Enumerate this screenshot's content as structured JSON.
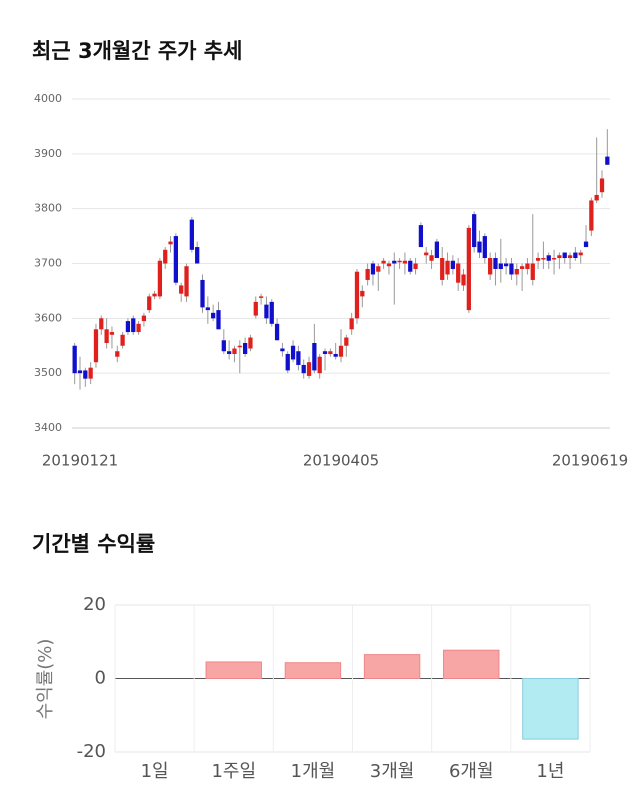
{
  "chart_data": [
    {
      "type": "candlestick",
      "title": "최근 3개월간 주가 추세",
      "categories": [
        "20190121",
        null,
        null,
        null,
        null,
        null,
        null,
        null,
        null,
        null,
        null,
        null,
        null,
        null,
        null,
        null,
        null,
        null,
        null,
        null,
        null,
        null,
        null,
        null,
        null,
        null,
        null,
        null,
        null,
        null,
        null,
        null,
        null,
        null,
        null,
        null,
        null,
        null,
        null,
        null,
        null,
        null,
        null,
        null,
        null,
        null,
        null,
        null,
        null,
        null,
        "20190405",
        null,
        null,
        null,
        null,
        null,
        null,
        null,
        null,
        null,
        null,
        null,
        null,
        null,
        null,
        null,
        null,
        null,
        null,
        null,
        null,
        null,
        null,
        null,
        null,
        null,
        null,
        null,
        null,
        null,
        null,
        null,
        null,
        null,
        null,
        null,
        null,
        null,
        null,
        null,
        null,
        null,
        null,
        null,
        null,
        null,
        null,
        null,
        null,
        null,
        "20190619"
      ],
      "ohlc": [
        [
          3550,
          3555,
          3480,
          3500
        ],
        [
          3505,
          3530,
          3470,
          3500
        ],
        [
          3505,
          3510,
          3475,
          3490
        ],
        [
          3490,
          3520,
          3480,
          3510
        ],
        [
          3520,
          3590,
          3510,
          3580
        ],
        [
          3580,
          3605,
          3570,
          3600
        ],
        [
          3555,
          3600,
          3545,
          3580
        ],
        [
          3570,
          3585,
          3545,
          3575
        ],
        [
          3530,
          3550,
          3520,
          3540
        ],
        [
          3550,
          3575,
          3545,
          3570
        ],
        [
          3595,
          3600,
          3570,
          3575
        ],
        [
          3600,
          3605,
          3570,
          3575
        ],
        [
          3575,
          3595,
          3570,
          3590
        ],
        [
          3595,
          3610,
          3585,
          3605
        ],
        [
          3615,
          3645,
          3610,
          3640
        ],
        [
          3640,
          3650,
          3635,
          3645
        ],
        [
          3640,
          3710,
          3635,
          3705
        ],
        [
          3700,
          3730,
          3690,
          3725
        ],
        [
          3735,
          3750,
          3720,
          3740
        ],
        [
          3750,
          3755,
          3660,
          3665
        ],
        [
          3645,
          3665,
          3630,
          3660
        ],
        [
          3640,
          3700,
          3630,
          3695
        ],
        [
          3780,
          3785,
          3720,
          3725
        ],
        [
          3730,
          3740,
          3700,
          3700
        ],
        [
          3670,
          3680,
          3610,
          3620
        ],
        [
          3620,
          3640,
          3590,
          3615
        ],
        [
          3610,
          3625,
          3595,
          3600
        ],
        [
          3615,
          3630,
          3580,
          3580
        ],
        [
          3560,
          3580,
          3535,
          3540
        ],
        [
          3540,
          3560,
          3525,
          3535
        ],
        [
          3535,
          3550,
          3520,
          3545
        ],
        [
          3550,
          3560,
          3500,
          3550
        ],
        [
          3555,
          3565,
          3530,
          3535
        ],
        [
          3545,
          3570,
          3540,
          3565
        ],
        [
          3605,
          3640,
          3600,
          3630
        ],
        [
          3640,
          3645,
          3625,
          3640
        ],
        [
          3625,
          3640,
          3590,
          3600
        ],
        [
          3630,
          3635,
          3585,
          3590
        ],
        [
          3590,
          3600,
          3560,
          3560
        ],
        [
          3545,
          3555,
          3530,
          3540
        ],
        [
          3535,
          3540,
          3500,
          3505
        ],
        [
          3550,
          3560,
          3520,
          3525
        ],
        [
          3540,
          3550,
          3505,
          3515
        ],
        [
          3515,
          3525,
          3490,
          3500
        ],
        [
          3495,
          3530,
          3490,
          3520
        ],
        [
          3555,
          3590,
          3500,
          3505
        ],
        [
          3500,
          3535,
          3490,
          3530
        ],
        [
          3540,
          3545,
          3505,
          3535
        ],
        [
          3535,
          3545,
          3530,
          3540
        ],
        [
          3535,
          3555,
          3525,
          3530
        ],
        [
          3530,
          3580,
          3520,
          3550
        ],
        [
          3550,
          3570,
          3530,
          3565
        ],
        [
          3580,
          3610,
          3570,
          3600
        ],
        [
          3600,
          3690,
          3590,
          3685
        ],
        [
          3640,
          3660,
          3620,
          3650
        ],
        [
          3670,
          3700,
          3660,
          3690
        ],
        [
          3700,
          3705,
          3660,
          3680
        ],
        [
          3685,
          3700,
          3650,
          3695
        ],
        [
          3700,
          3710,
          3690,
          3705
        ],
        [
          3695,
          3705,
          3680,
          3700
        ],
        [
          3705,
          3720,
          3625,
          3700
        ],
        [
          3705,
          3710,
          3690,
          3705
        ],
        [
          3700,
          3720,
          3680,
          3705
        ],
        [
          3705,
          3710,
          3680,
          3685
        ],
        [
          3690,
          3710,
          3680,
          3700
        ],
        [
          3770,
          3775,
          3730,
          3730
        ],
        [
          3715,
          3730,
          3700,
          3720
        ],
        [
          3705,
          3725,
          3690,
          3715
        ],
        [
          3740,
          3745,
          3710,
          3710
        ],
        [
          3670,
          3730,
          3660,
          3710
        ],
        [
          3680,
          3720,
          3670,
          3705
        ],
        [
          3705,
          3715,
          3680,
          3690
        ],
        [
          3665,
          3710,
          3650,
          3700
        ],
        [
          3660,
          3690,
          3650,
          3680
        ],
        [
          3615,
          3770,
          3610,
          3765
        ],
        [
          3790,
          3795,
          3720,
          3730
        ],
        [
          3740,
          3760,
          3710,
          3720
        ],
        [
          3750,
          3755,
          3700,
          3710
        ],
        [
          3680,
          3720,
          3670,
          3710
        ],
        [
          3710,
          3720,
          3660,
          3690
        ],
        [
          3700,
          3745,
          3665,
          3690
        ],
        [
          3700,
          3710,
          3680,
          3695
        ],
        [
          3700,
          3710,
          3670,
          3680
        ],
        [
          3680,
          3700,
          3660,
          3690
        ],
        [
          3690,
          3700,
          3650,
          3695
        ],
        [
          3690,
          3710,
          3680,
          3700
        ],
        [
          3670,
          3790,
          3660,
          3700
        ],
        [
          3705,
          3720,
          3690,
          3710
        ],
        [
          3710,
          3740,
          3690,
          3710
        ],
        [
          3715,
          3720,
          3690,
          3705
        ],
        [
          3710,
          3725,
          3680,
          3710
        ],
        [
          3710,
          3720,
          3690,
          3715
        ],
        [
          3720,
          3720,
          3700,
          3710
        ],
        [
          3710,
          3720,
          3690,
          3715
        ],
        [
          3720,
          3730,
          3705,
          3710
        ],
        [
          3715,
          3725,
          3700,
          3720
        ],
        [
          3740,
          3770,
          3730,
          3730
        ],
        [
          3760,
          3820,
          3750,
          3815
        ],
        [
          3815,
          3930,
          3810,
          3825
        ],
        [
          3830,
          3870,
          3820,
          3855
        ],
        [
          3895,
          3945,
          3880,
          3880
        ]
      ],
      "ylim": [
        3400,
        4000
      ],
      "yticks": [
        3400,
        3500,
        3600,
        3700,
        3800,
        3900,
        4000
      ],
      "grid": true,
      "up_color": "#e0201c",
      "down_color": "#1010cc"
    },
    {
      "type": "bar",
      "title": "기간별 수익률",
      "ylabel": "수익률(%)",
      "categories": [
        "1일",
        "1주일",
        "1개월",
        "3개월",
        "6개월",
        "1년"
      ],
      "values": [
        0,
        4.5,
        4.3,
        6.5,
        7.7,
        -16.5
      ],
      "ylim": [
        -20,
        20
      ],
      "yticks": [
        -20,
        0,
        20
      ],
      "grid": true,
      "positive_color": "#f8a5a5",
      "negative_color": "#b2ebf2"
    }
  ]
}
